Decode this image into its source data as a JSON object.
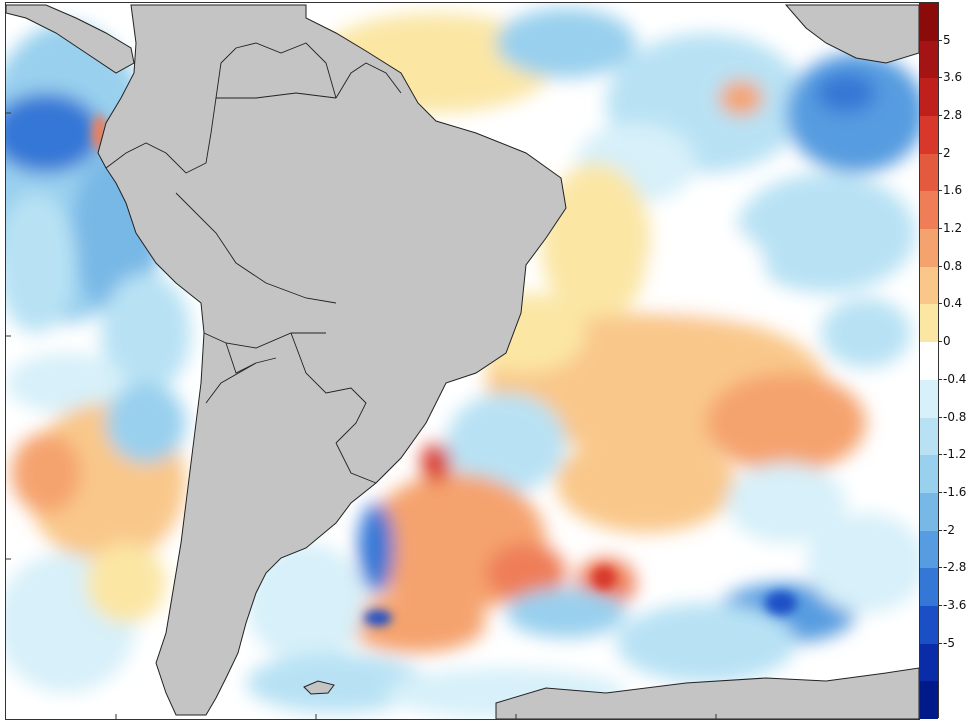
{
  "map": {
    "variable": "anomaly",
    "land_color": "#c4c4c4",
    "border_color": "#222222",
    "ocean_base": "#ffffff"
  },
  "colorbar": {
    "labels": [
      "5",
      "3.6",
      "2.8",
      "2",
      "1.6",
      "1.2",
      "0.8",
      "0.4",
      "0",
      "-0.4",
      "-0.8",
      "-1.2",
      "-1.6",
      "-2",
      "-2.8",
      "-3.6",
      "-5"
    ],
    "colors": [
      "#8b0a0a",
      "#a51414",
      "#c0201c",
      "#d8382c",
      "#e45a3e",
      "#ef7e58",
      "#f5a36e",
      "#f9c78a",
      "#fbe6a4",
      "#ffffff",
      "#d7f0f9",
      "#b8e2f4",
      "#99d0ee",
      "#78b8e6",
      "#579ce0",
      "#3577d6",
      "#1a4fc6",
      "#0b2ca8",
      "#001a8a"
    ]
  }
}
